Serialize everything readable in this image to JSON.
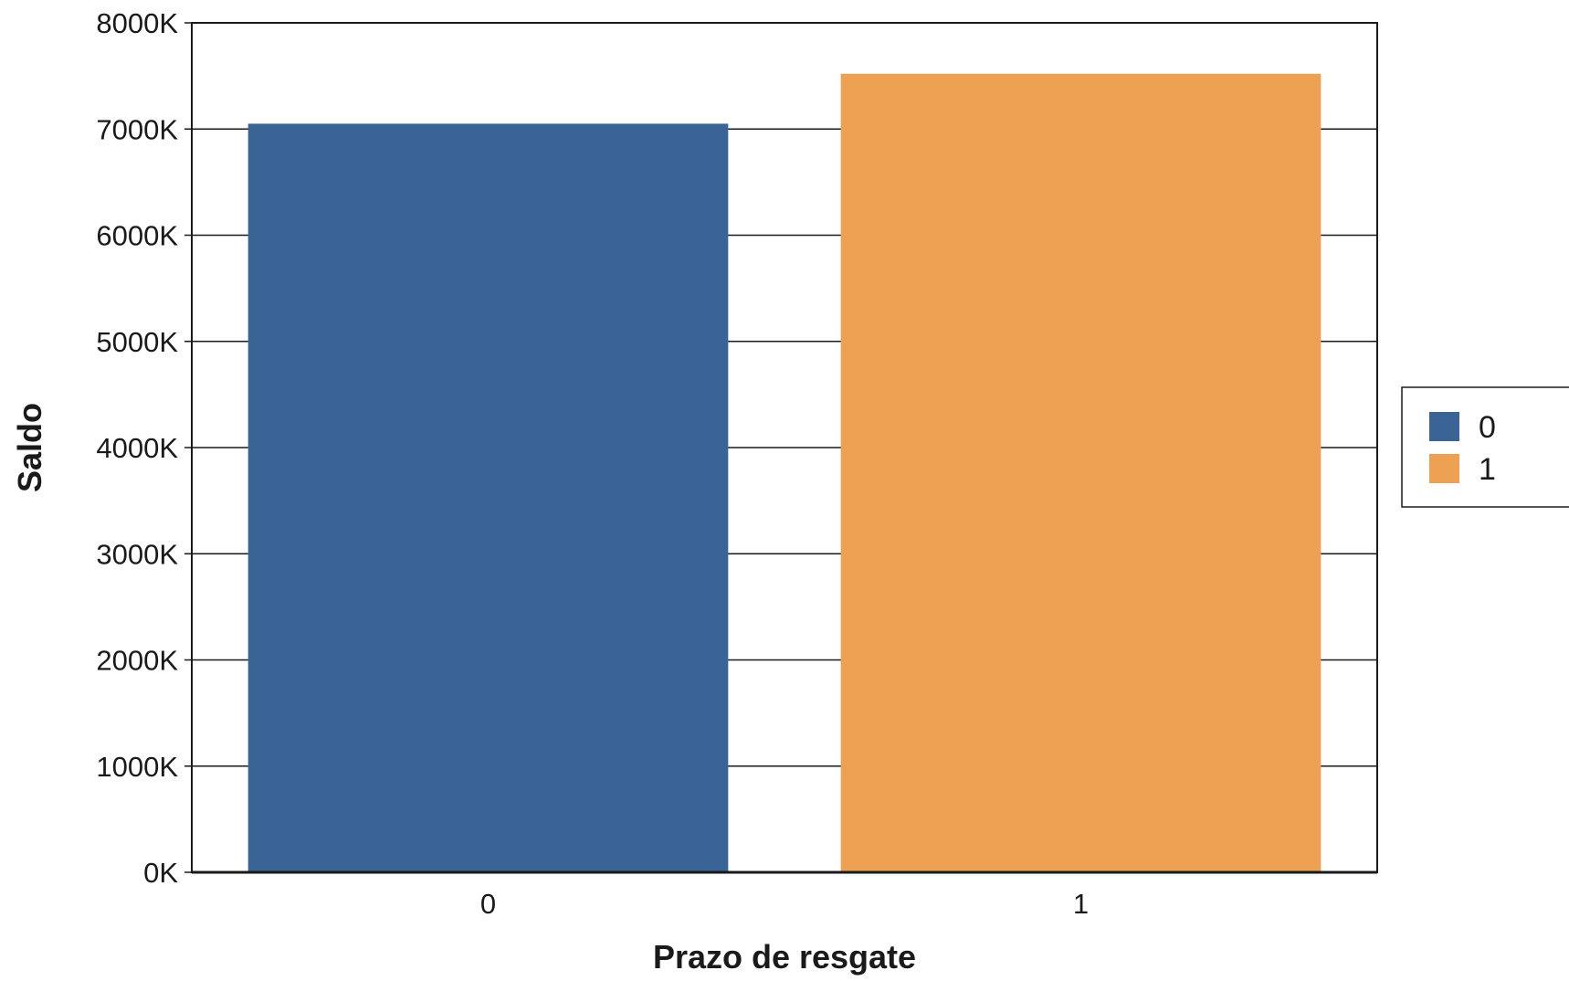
{
  "chart_data": {
    "type": "bar",
    "categories": [
      "0",
      "1"
    ],
    "values": [
      7050,
      7520
    ],
    "value_unit_suffix": "K",
    "xlabel": "Prazo de resgate",
    "ylabel": "Saldo",
    "ylim": [
      0,
      8000
    ],
    "yticks": [
      0,
      1000,
      2000,
      3000,
      4000,
      5000,
      6000,
      7000,
      8000
    ],
    "ytick_labels": [
      "0K",
      "1000K",
      "2000K",
      "3000K",
      "4000K",
      "5000K",
      "6000K",
      "7000K",
      "8000K"
    ],
    "grid": "horizontal",
    "legend": {
      "placement": "right",
      "entries": [
        {
          "label": "0",
          "color": "#3b6496"
        },
        {
          "label": "1",
          "color": "#eea153"
        }
      ]
    },
    "colors": [
      "#3b6496",
      "#eea153"
    ]
  }
}
